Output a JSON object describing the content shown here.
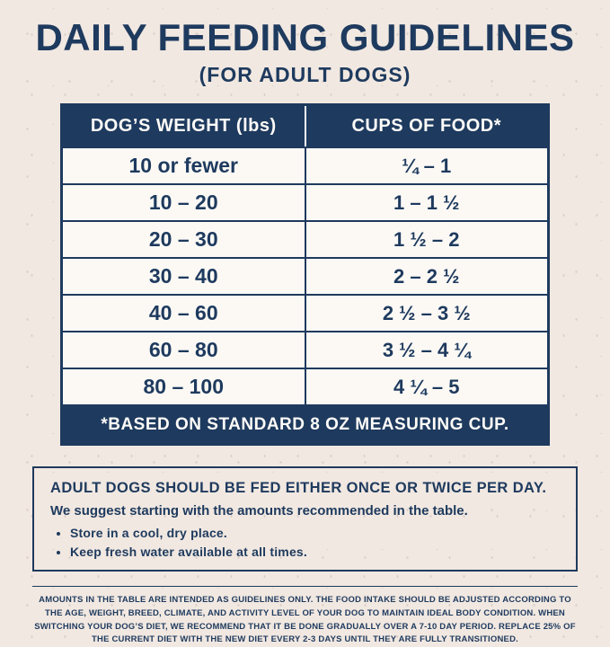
{
  "colors": {
    "navy": "#1e3a5e",
    "background": "#f1e8e1",
    "row_background": "#fcf9f5",
    "header_text": "#fdfbf8"
  },
  "title": "DAILY FEEDING GUIDELINES",
  "subtitle": "(FOR ADULT DOGS)",
  "table": {
    "headers": {
      "weight": "DOG’S WEIGHT (lbs)",
      "cups": "CUPS OF FOOD*"
    },
    "rows": [
      {
        "weight": "10 or fewer",
        "cups": "¼ – 1"
      },
      {
        "weight": "10 – 20",
        "cups": "1 – 1 ½"
      },
      {
        "weight": "20 – 30",
        "cups": "1 ½ – 2"
      },
      {
        "weight": "30 – 40",
        "cups": "2 – 2 ½"
      },
      {
        "weight": "40 – 60",
        "cups": "2 ½ – 3 ½"
      },
      {
        "weight": "60 – 80",
        "cups": "3 ½ – 4 ¼"
      },
      {
        "weight": "80 – 100",
        "cups": "4 ¼ – 5"
      }
    ],
    "footnote": "*BASED ON STANDARD 8 OZ MEASURING CUP."
  },
  "info_box": {
    "heading": "ADULT DOGS SHOULD BE FED EITHER ONCE OR TWICE PER DAY.",
    "subheading": "We suggest starting with the amounts recommended in the table.",
    "bullets": [
      "Store in a cool, dry place.",
      "Keep fresh water available at all times."
    ]
  },
  "fine_print": "AMOUNTS IN THE TABLE ARE INTENDED AS GUIDELINES ONLY. THE FOOD INTAKE SHOULD BE ADJUSTED ACCORDING TO THE AGE, WEIGHT, BREED, CLIMATE, AND ACTIVITY LEVEL OF YOUR DOG TO MAINTAIN IDEAL BODY CONDITION. WHEN SWITCHING YOUR DOG’S DIET, WE RECOMMEND THAT IT BE DONE GRADUALLY OVER A 7-10 DAY PERIOD. REPLACE 25% OF THE CURRENT DIET WITH THE NEW DIET EVERY 2-3 DAYS UNTIL THEY ARE FULLY TRANSITIONED."
}
